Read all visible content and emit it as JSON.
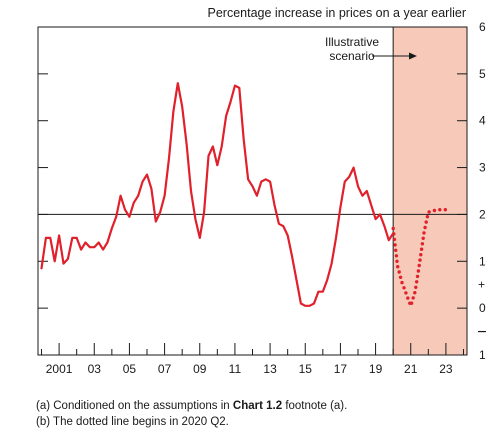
{
  "chart_data": {
    "type": "line",
    "title": "Percentage increase in prices on a year earlier",
    "xlabel": "",
    "ylabel": "",
    "x_ticks": [
      "2001",
      "03",
      "05",
      "07",
      "09",
      "11",
      "13",
      "15",
      "17",
      "19",
      "21",
      "23"
    ],
    "y_ticks": [
      6,
      5,
      4,
      3,
      2,
      1,
      0,
      -1
    ],
    "y_tick_labels": [
      "6",
      "5",
      "4",
      "3",
      "2",
      "1",
      "0",
      "1"
    ],
    "ylim": [
      -1,
      6
    ],
    "xlim": [
      1999.8,
      2024.2
    ],
    "reference_line": 2,
    "grid": false,
    "shaded_region": {
      "x_start": 2020.0,
      "x_end": 2024.2,
      "label_lines": [
        "Illustrative",
        "scenario"
      ],
      "color": "#f7c9b8"
    },
    "line_color": "#e0202b",
    "series": [
      {
        "style": "solid",
        "points": [
          [
            2000.0,
            0.85
          ],
          [
            2000.25,
            1.5
          ],
          [
            2000.5,
            1.5
          ],
          [
            2000.75,
            1.0
          ],
          [
            2001.0,
            1.55
          ],
          [
            2001.25,
            0.95
          ],
          [
            2001.5,
            1.05
          ],
          [
            2001.75,
            1.5
          ],
          [
            2002.0,
            1.5
          ],
          [
            2002.25,
            1.25
          ],
          [
            2002.5,
            1.4
          ],
          [
            2002.75,
            1.3
          ],
          [
            2003.0,
            1.3
          ],
          [
            2003.25,
            1.4
          ],
          [
            2003.5,
            1.25
          ],
          [
            2003.75,
            1.4
          ],
          [
            2004.0,
            1.7
          ],
          [
            2004.25,
            1.95
          ],
          [
            2004.5,
            2.4
          ],
          [
            2004.75,
            2.1
          ],
          [
            2005.0,
            1.95
          ],
          [
            2005.25,
            2.25
          ],
          [
            2005.5,
            2.4
          ],
          [
            2005.75,
            2.7
          ],
          [
            2006.0,
            2.85
          ],
          [
            2006.25,
            2.55
          ],
          [
            2006.5,
            1.85
          ],
          [
            2006.75,
            2.05
          ],
          [
            2007.0,
            2.4
          ],
          [
            2007.25,
            3.2
          ],
          [
            2007.5,
            4.2
          ],
          [
            2007.75,
            4.8
          ],
          [
            2008.0,
            4.3
          ],
          [
            2008.25,
            3.5
          ],
          [
            2008.5,
            2.5
          ],
          [
            2008.75,
            1.9
          ],
          [
            2009.0,
            1.5
          ],
          [
            2009.25,
            2.05
          ],
          [
            2009.5,
            3.25
          ],
          [
            2009.75,
            3.45
          ],
          [
            2010.0,
            3.05
          ],
          [
            2010.25,
            3.45
          ],
          [
            2010.5,
            4.1
          ],
          [
            2010.75,
            4.4
          ],
          [
            2011.0,
            4.75
          ],
          [
            2011.25,
            4.7
          ],
          [
            2011.5,
            3.6
          ],
          [
            2011.75,
            2.75
          ],
          [
            2012.0,
            2.6
          ],
          [
            2012.25,
            2.4
          ],
          [
            2012.5,
            2.7
          ],
          [
            2012.75,
            2.75
          ],
          [
            2013.0,
            2.7
          ],
          [
            2013.25,
            2.2
          ],
          [
            2013.5,
            1.8
          ],
          [
            2013.75,
            1.75
          ],
          [
            2014.0,
            1.55
          ],
          [
            2014.25,
            1.1
          ],
          [
            2014.5,
            0.6
          ],
          [
            2014.75,
            0.1
          ],
          [
            2015.0,
            0.05
          ],
          [
            2015.25,
            0.05
          ],
          [
            2015.5,
            0.1
          ],
          [
            2015.75,
            0.35
          ],
          [
            2016.0,
            0.35
          ],
          [
            2016.25,
            0.6
          ],
          [
            2016.5,
            0.95
          ],
          [
            2016.75,
            1.5
          ],
          [
            2017.0,
            2.15
          ],
          [
            2017.25,
            2.7
          ],
          [
            2017.5,
            2.8
          ],
          [
            2017.75,
            3.0
          ],
          [
            2018.0,
            2.6
          ],
          [
            2018.25,
            2.4
          ],
          [
            2018.5,
            2.5
          ],
          [
            2018.75,
            2.2
          ],
          [
            2019.0,
            1.9
          ],
          [
            2019.25,
            2.0
          ],
          [
            2019.5,
            1.75
          ],
          [
            2019.75,
            1.45
          ],
          [
            2020.0,
            1.6
          ]
        ]
      },
      {
        "style": "dotted",
        "points": [
          [
            2020.0,
            1.7
          ],
          [
            2020.25,
            0.9
          ],
          [
            2020.5,
            0.55
          ],
          [
            2020.75,
            0.3
          ],
          [
            2021.0,
            0.05
          ],
          [
            2021.25,
            0.35
          ],
          [
            2021.5,
            0.95
          ],
          [
            2021.75,
            1.6
          ],
          [
            2022.0,
            2.05
          ],
          [
            2022.5,
            2.1
          ],
          [
            2023.0,
            2.1
          ],
          [
            2023.25,
            2.1
          ]
        ]
      }
    ]
  },
  "notes": {
    "a_prefix": "(a)  Conditioned on the assumptions in ",
    "a_bold": "Chart 1.2",
    "a_suffix": " footnote (a).",
    "b": "(b)  The dotted line begins in 2020 Q2."
  }
}
